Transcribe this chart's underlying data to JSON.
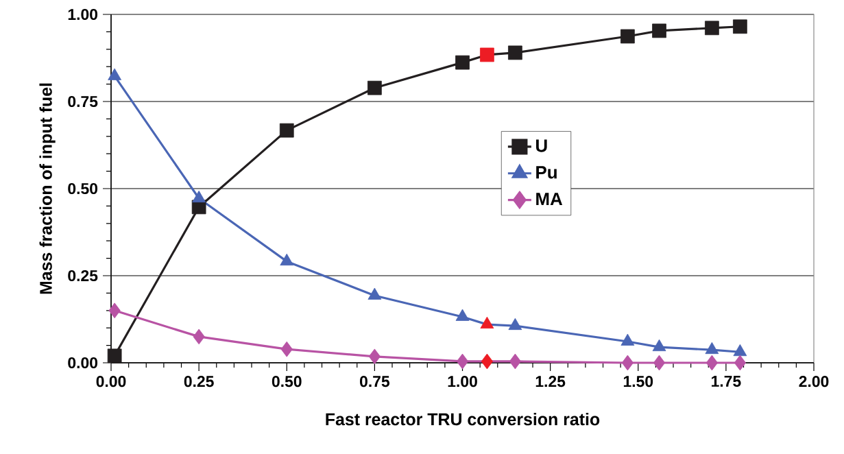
{
  "chart_data": {
    "type": "line",
    "xlabel": "Fast reactor TRU conversion ratio",
    "ylabel": "Mass fraction of input fuel",
    "x": [
      0.01,
      0.25,
      0.5,
      0.75,
      1.0,
      1.07,
      1.15,
      1.47,
      1.56,
      1.71,
      1.79
    ],
    "series": [
      {
        "name": "U",
        "color": "#231f20",
        "marker": "square",
        "colors": [
          "#231f20",
          "#231f20",
          "#231f20",
          "#231f20",
          "#231f20",
          "#ed1c24",
          "#231f20",
          "#231f20",
          "#231f20",
          "#231f20",
          "#231f20"
        ],
        "values": [
          0.02,
          0.447,
          0.667,
          0.789,
          0.862,
          0.884,
          0.89,
          0.937,
          0.953,
          0.961,
          0.965
        ]
      },
      {
        "name": "Pu",
        "color": "#4a66b5",
        "marker": "triangle",
        "colors": [
          "#4a66b5",
          "#4a66b5",
          "#4a66b5",
          "#4a66b5",
          "#4a66b5",
          "#ed1c24",
          "#4a66b5",
          "#4a66b5",
          "#4a66b5",
          "#4a66b5",
          "#4a66b5"
        ],
        "values": [
          0.823,
          0.472,
          0.291,
          0.193,
          0.132,
          0.11,
          0.106,
          0.061,
          0.045,
          0.037,
          0.031
        ]
      },
      {
        "name": "MA",
        "color": "#b853a4",
        "marker": "diamond",
        "colors": [
          "#b853a4",
          "#b853a4",
          "#b853a4",
          "#b853a4",
          "#b853a4",
          "#ed1c24",
          "#b853a4",
          "#b853a4",
          "#b853a4",
          "#b853a4",
          "#b853a4"
        ],
        "values": [
          0.15,
          0.075,
          0.039,
          0.018,
          0.004,
          0.004,
          0.004,
          0.0,
          0.0,
          0.0,
          0.0
        ]
      }
    ],
    "xlim": [
      0,
      2
    ],
    "ylim": [
      0,
      1
    ],
    "xticks": [
      {
        "value": 0,
        "label": "0.00"
      },
      {
        "value": 0.25,
        "label": "0.25"
      },
      {
        "value": 0.5,
        "label": "0.50"
      },
      {
        "value": 0.75,
        "label": "0.75"
      },
      {
        "value": 1,
        "label": "1.00"
      },
      {
        "value": 1.25,
        "label": "1.25"
      },
      {
        "value": 1.5,
        "label": "1.50"
      },
      {
        "value": 1.75,
        "label": "1.75"
      },
      {
        "value": 2,
        "label": "2.00"
      }
    ],
    "yticks": [
      {
        "value": 0,
        "label": "0.00"
      },
      {
        "value": 0.25,
        "label": "0.25"
      },
      {
        "value": 0.5,
        "label": "0.50"
      },
      {
        "value": 0.75,
        "label": "0.75"
      },
      {
        "value": 1,
        "label": "1.00"
      }
    ],
    "grid": "y",
    "legend": "center",
    "line_style": "solid"
  }
}
